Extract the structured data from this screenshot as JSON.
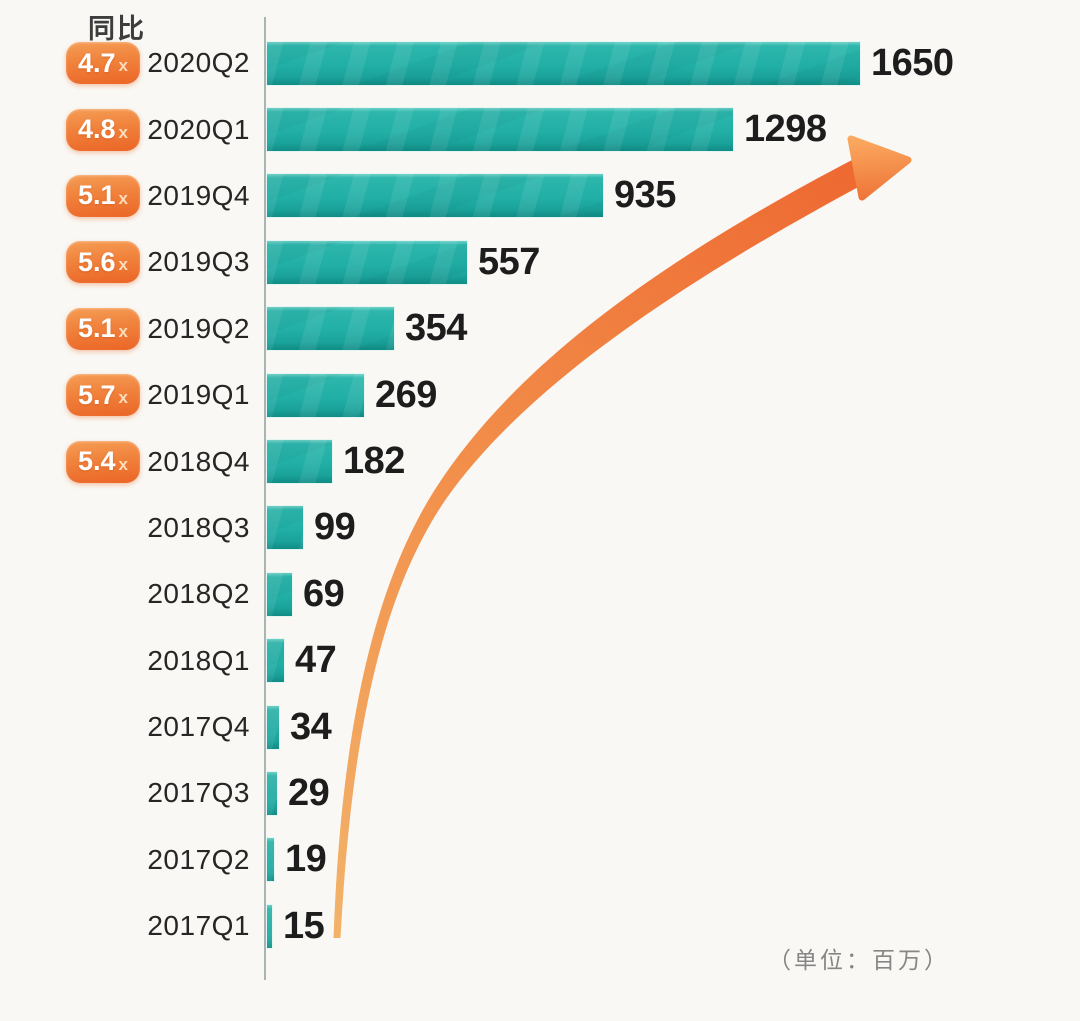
{
  "labels": {
    "yoy_header": "同比",
    "unit_note": "（单位：百万）"
  },
  "chart_data": {
    "type": "bar",
    "orientation": "horizontal",
    "title": "",
    "xlabel": "",
    "ylabel": "",
    "unit_label": "百万",
    "xlim": [
      0,
      1650
    ],
    "grid": false,
    "categories": [
      "2020Q2",
      "2020Q1",
      "2019Q4",
      "2019Q3",
      "2019Q2",
      "2019Q1",
      "2018Q4",
      "2018Q3",
      "2018Q2",
      "2018Q1",
      "2017Q4",
      "2017Q3",
      "2017Q2",
      "2017Q1"
    ],
    "values": [
      1650,
      1298,
      935,
      557,
      354,
      269,
      182,
      99,
      69,
      47,
      34,
      29,
      19,
      15
    ],
    "yoy_multipliers": [
      "4.7",
      "4.8",
      "5.1",
      "5.6",
      "5.1",
      "5.7",
      "5.4",
      null,
      null,
      null,
      null,
      null,
      null,
      null
    ],
    "yoy_suffix": "x",
    "annotations": [
      "growth-arrow"
    ]
  },
  "colors": {
    "background": "#f9f8f4",
    "bar_teal": "#21afa6",
    "bar_teal_dark": "#108c85",
    "badge_orange": "#ee7430",
    "arrow_orange_tail": "#f2b269",
    "arrow_orange_head": "#ee6831",
    "axis_gray": "#a9b4b3",
    "value_text": "#1d1d1d",
    "category_text": "#262626",
    "note_gray": "#868686"
  }
}
